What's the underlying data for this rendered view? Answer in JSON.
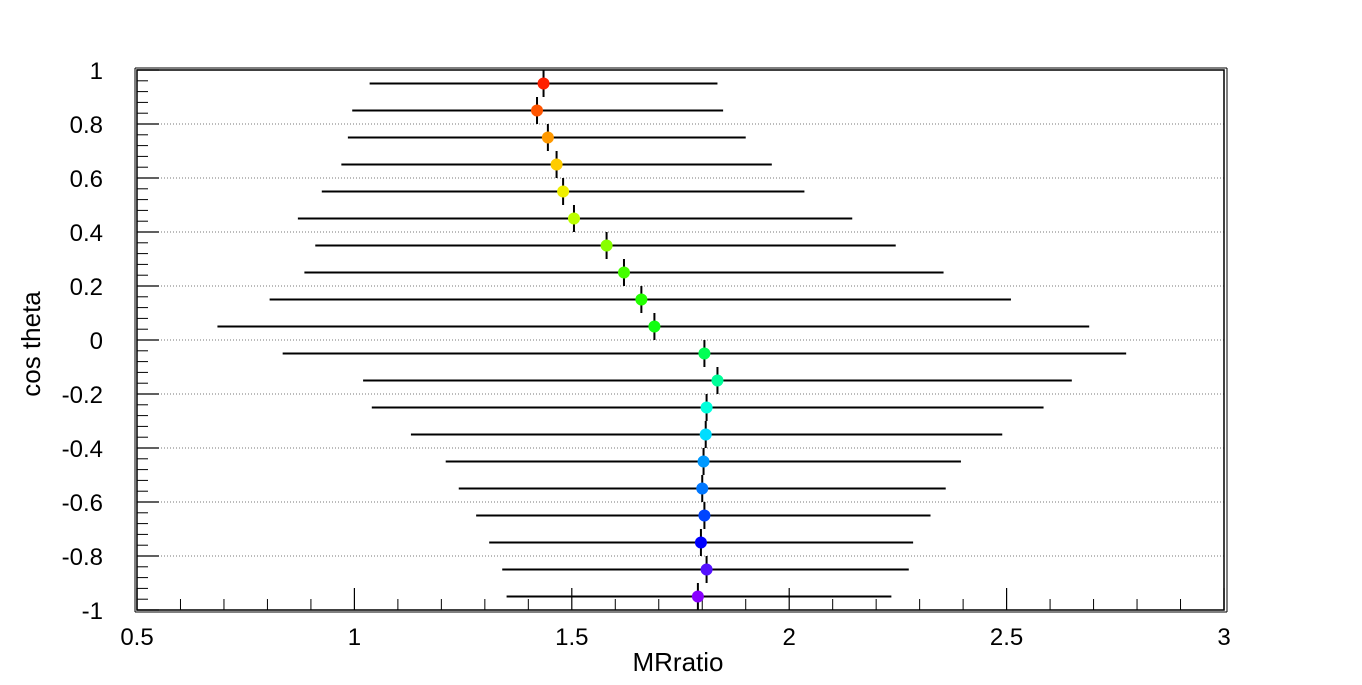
{
  "chart_data": {
    "type": "scatter",
    "title": "",
    "xlabel": "MRratio",
    "ylabel": "cos theta",
    "xlim": [
      0.5,
      3
    ],
    "ylim": [
      -1,
      1
    ],
    "x_ticks": [
      0.5,
      1,
      1.5,
      2,
      2.5,
      3
    ],
    "x_tick_labels": [
      "0.5",
      "1",
      "1.5",
      "2",
      "2.5",
      "3"
    ],
    "y_ticks": [
      1,
      0.8,
      0.6,
      0.4,
      0.2,
      0,
      -0.2,
      -0.4,
      -0.6,
      -0.8,
      -1
    ],
    "y_tick_labels": [
      "1",
      "0.8",
      "0.6",
      "0.4",
      "0.2",
      "0",
      "-0.2",
      "-0.4",
      "-0.6",
      "-0.8",
      "-1"
    ],
    "grid": {
      "x": false,
      "y": true
    },
    "legend": "none",
    "points": [
      {
        "y": 0.95,
        "x": 1.435,
        "xerr_low": 1.035,
        "xerr_high": 1.835,
        "yerr": 0.05,
        "color": "#ff2000"
      },
      {
        "y": 0.85,
        "x": 1.42,
        "xerr_low": 0.995,
        "xerr_high": 1.848,
        "yerr": 0.05,
        "color": "#ff5500"
      },
      {
        "y": 0.75,
        "x": 1.445,
        "xerr_low": 0.985,
        "xerr_high": 1.9,
        "yerr": 0.05,
        "color": "#ff9900"
      },
      {
        "y": 0.65,
        "x": 1.465,
        "xerr_low": 0.97,
        "xerr_high": 1.96,
        "yerr": 0.05,
        "color": "#ffcc00"
      },
      {
        "y": 0.55,
        "x": 1.48,
        "xerr_low": 0.925,
        "xerr_high": 2.035,
        "yerr": 0.05,
        "color": "#eeee00"
      },
      {
        "y": 0.45,
        "x": 1.505,
        "xerr_low": 0.87,
        "xerr_high": 2.145,
        "yerr": 0.05,
        "color": "#bbff00"
      },
      {
        "y": 0.35,
        "x": 1.58,
        "xerr_low": 0.91,
        "xerr_high": 2.245,
        "yerr": 0.05,
        "color": "#88ff00"
      },
      {
        "y": 0.25,
        "x": 1.62,
        "xerr_low": 0.885,
        "xerr_high": 2.355,
        "yerr": 0.05,
        "color": "#44ff00"
      },
      {
        "y": 0.15,
        "x": 1.66,
        "xerr_low": 0.805,
        "xerr_high": 2.51,
        "yerr": 0.05,
        "color": "#22ff00"
      },
      {
        "y": 0.05,
        "x": 1.69,
        "xerr_low": 0.685,
        "xerr_high": 2.69,
        "yerr": 0.05,
        "color": "#11ff11"
      },
      {
        "y": -0.05,
        "x": 1.805,
        "xerr_low": 0.835,
        "xerr_high": 2.775,
        "yerr": 0.05,
        "color": "#00ff55"
      },
      {
        "y": -0.15,
        "x": 1.835,
        "xerr_low": 1.02,
        "xerr_high": 2.65,
        "yerr": 0.05,
        "color": "#00ff99"
      },
      {
        "y": -0.25,
        "x": 1.81,
        "xerr_low": 1.04,
        "xerr_high": 2.585,
        "yerr": 0.05,
        "color": "#00ffdd"
      },
      {
        "y": -0.35,
        "x": 1.808,
        "xerr_low": 1.13,
        "xerr_high": 2.49,
        "yerr": 0.05,
        "color": "#00ddff"
      },
      {
        "y": -0.45,
        "x": 1.803,
        "xerr_low": 1.21,
        "xerr_high": 2.395,
        "yerr": 0.05,
        "color": "#0099ff"
      },
      {
        "y": -0.55,
        "x": 1.8,
        "xerr_low": 1.24,
        "xerr_high": 2.36,
        "yerr": 0.05,
        "color": "#0077ff"
      },
      {
        "y": -0.65,
        "x": 1.805,
        "xerr_low": 1.28,
        "xerr_high": 2.325,
        "yerr": 0.05,
        "color": "#0044ff"
      },
      {
        "y": -0.75,
        "x": 1.797,
        "xerr_low": 1.31,
        "xerr_high": 2.285,
        "yerr": 0.05,
        "color": "#0000ff"
      },
      {
        "y": -0.85,
        "x": 1.81,
        "xerr_low": 1.34,
        "xerr_high": 2.275,
        "yerr": 0.05,
        "color": "#5511ff"
      },
      {
        "y": -0.95,
        "x": 1.79,
        "xerr_low": 1.35,
        "xerr_high": 2.235,
        "yerr": 0.05,
        "color": "#8800ff"
      }
    ]
  }
}
